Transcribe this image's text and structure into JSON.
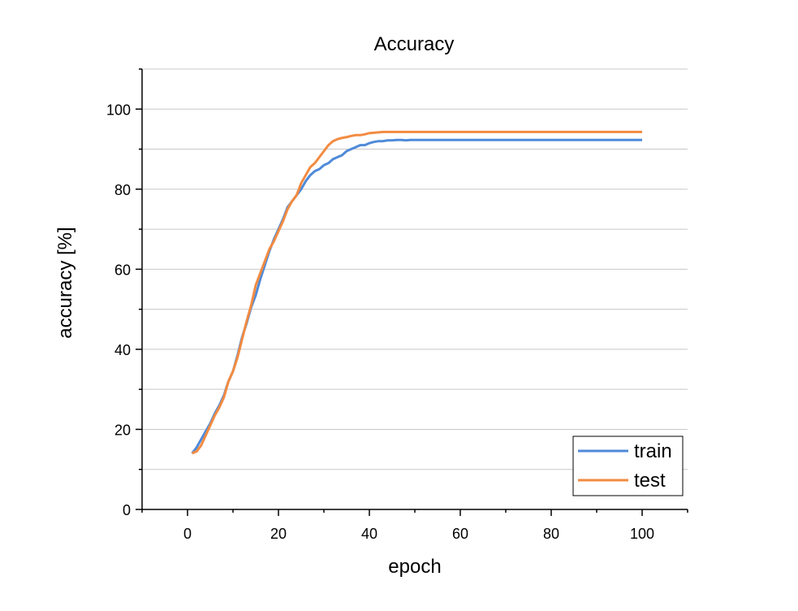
{
  "colors": {
    "train": "#4f8ad8",
    "test": "#f28b41",
    "grid": "#c8c8c8",
    "axis": "#000000"
  },
  "chart_data": {
    "type": "line",
    "title": "Accuracy",
    "xlabel": "epoch",
    "ylabel": "accuracy [%]",
    "xlim": [
      -10,
      110
    ],
    "ylim": [
      0,
      110
    ],
    "x_ticks": [
      0,
      20,
      40,
      60,
      80,
      100
    ],
    "y_ticks": [
      0,
      20,
      40,
      60,
      80,
      100
    ],
    "grid": "horizontal",
    "legend_position": "bottom-right",
    "x": [
      1,
      2,
      3,
      4,
      5,
      6,
      7,
      8,
      9,
      10,
      11,
      12,
      13,
      14,
      15,
      16,
      17,
      18,
      19,
      20,
      21,
      22,
      23,
      24,
      25,
      26,
      27,
      28,
      29,
      30,
      31,
      32,
      33,
      34,
      35,
      36,
      37,
      38,
      39,
      40,
      41,
      42,
      43,
      44,
      45,
      46,
      47,
      48,
      49,
      50,
      55,
      60,
      65,
      70,
      75,
      80,
      85,
      90,
      95,
      100
    ],
    "series": [
      {
        "name": "train",
        "color_key": "train",
        "values": [
          14,
          15.5,
          17.5,
          19.5,
          21.5,
          24,
          26,
          28.5,
          32,
          34.5,
          38.5,
          43,
          46.5,
          50.5,
          53.5,
          57.5,
          61,
          64.5,
          67.5,
          70,
          72.5,
          75.5,
          77,
          78.5,
          80,
          82,
          83.5,
          84.5,
          85,
          86,
          86.5,
          87.5,
          88,
          88.5,
          89.5,
          90,
          90.5,
          91,
          91,
          91.5,
          91.8,
          92,
          92,
          92.2,
          92.2,
          92.3,
          92.3,
          92.2,
          92.3,
          92.3,
          92.3,
          92.3,
          92.3,
          92.3,
          92.3,
          92.3,
          92.3,
          92.3,
          92.3,
          92.3
        ]
      },
      {
        "name": "test",
        "color_key": "test",
        "values": [
          14,
          14.5,
          16,
          18.5,
          21,
          23.5,
          25.5,
          28,
          32,
          34.5,
          38,
          42.5,
          47,
          51,
          56,
          59,
          62,
          65,
          67,
          69.5,
          72,
          75,
          77,
          78.5,
          81.5,
          83.5,
          85.5,
          86.5,
          88,
          89.5,
          91,
          92,
          92.5,
          92.8,
          93,
          93.3,
          93.5,
          93.5,
          93.7,
          94,
          94.1,
          94.2,
          94.3,
          94.3,
          94.3,
          94.3,
          94.3,
          94.3,
          94.3,
          94.3,
          94.3,
          94.3,
          94.3,
          94.3,
          94.3,
          94.3,
          94.3,
          94.3,
          94.3,
          94.3
        ]
      }
    ]
  }
}
